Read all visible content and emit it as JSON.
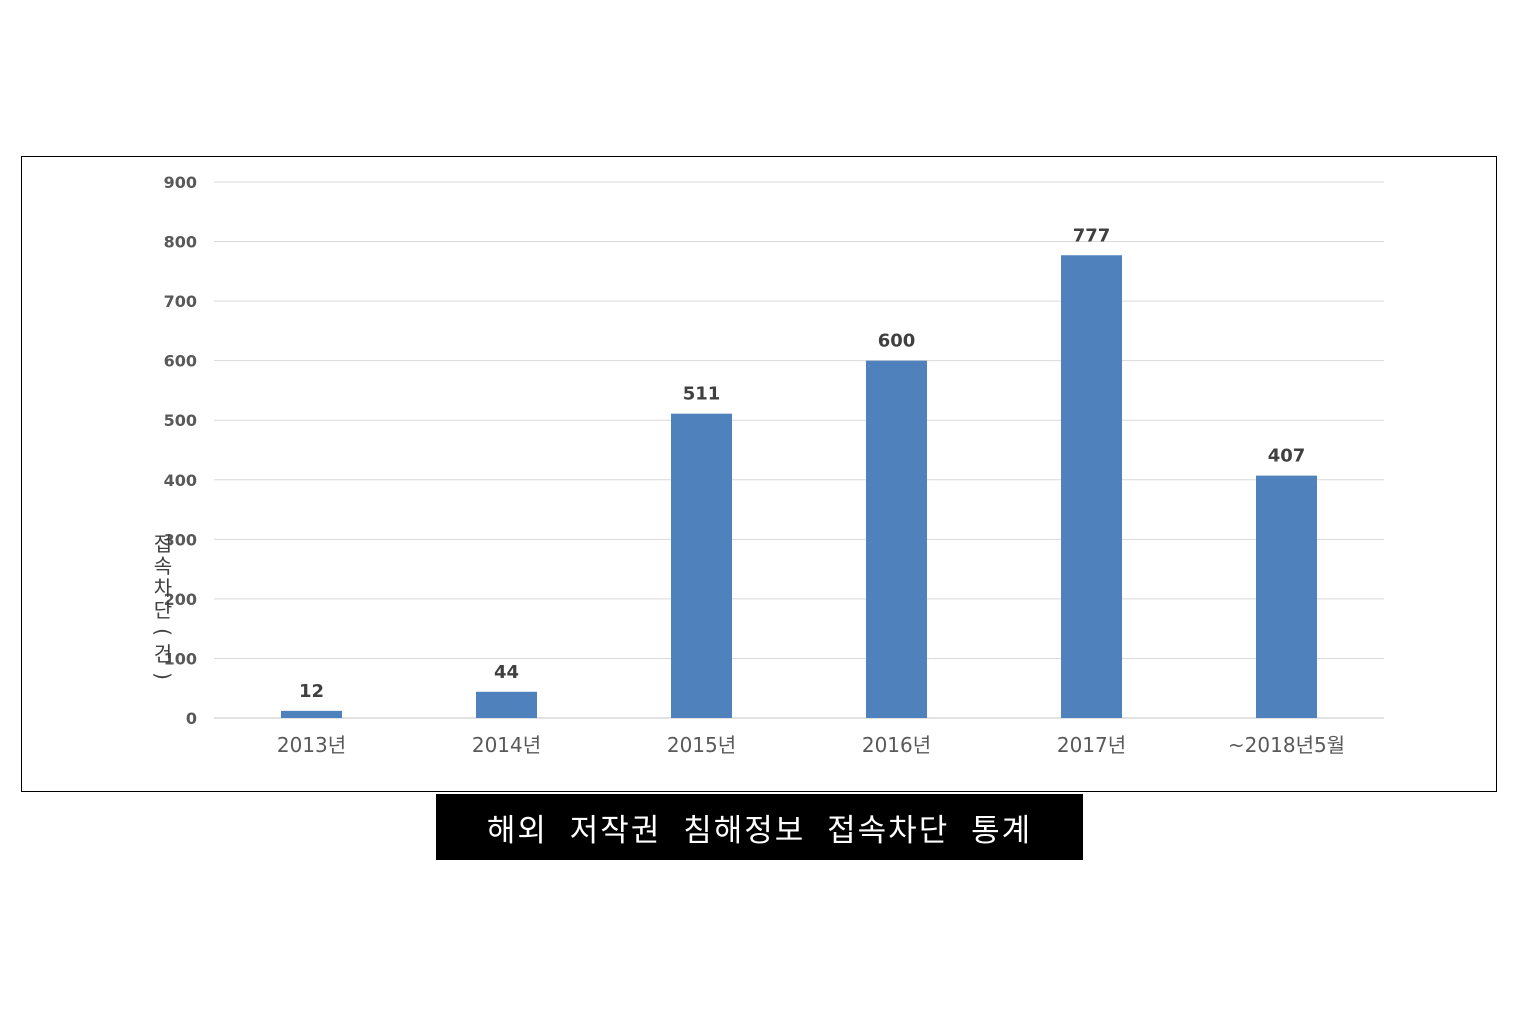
{
  "caption": "해외 저작권 침해정보 접속차단 통계",
  "chart_data": {
    "type": "bar",
    "title": "",
    "xlabel": "",
    "ylabel": "접속차단(건)",
    "categories": [
      "2013년",
      "2014년",
      "2015년",
      "2016년",
      "2017년",
      "~2018년5월"
    ],
    "values": [
      12,
      44,
      511,
      600,
      777,
      407
    ],
    "data_labels": [
      "12",
      "44",
      "511",
      "600",
      "777",
      "407"
    ],
    "ylim": [
      0,
      900
    ],
    "yticks": [
      0,
      100,
      200,
      300,
      400,
      500,
      600,
      700,
      800,
      900
    ],
    "ytick_labels": [
      "0",
      "100",
      "200",
      "300",
      "400",
      "500",
      "600",
      "700",
      "800",
      "900"
    ],
    "grid": true,
    "legend": "none",
    "colors": {
      "bar": "#4f81bd",
      "grid": "#d9d9d9",
      "axis_text": "#595959",
      "data_label": "#404040"
    }
  }
}
